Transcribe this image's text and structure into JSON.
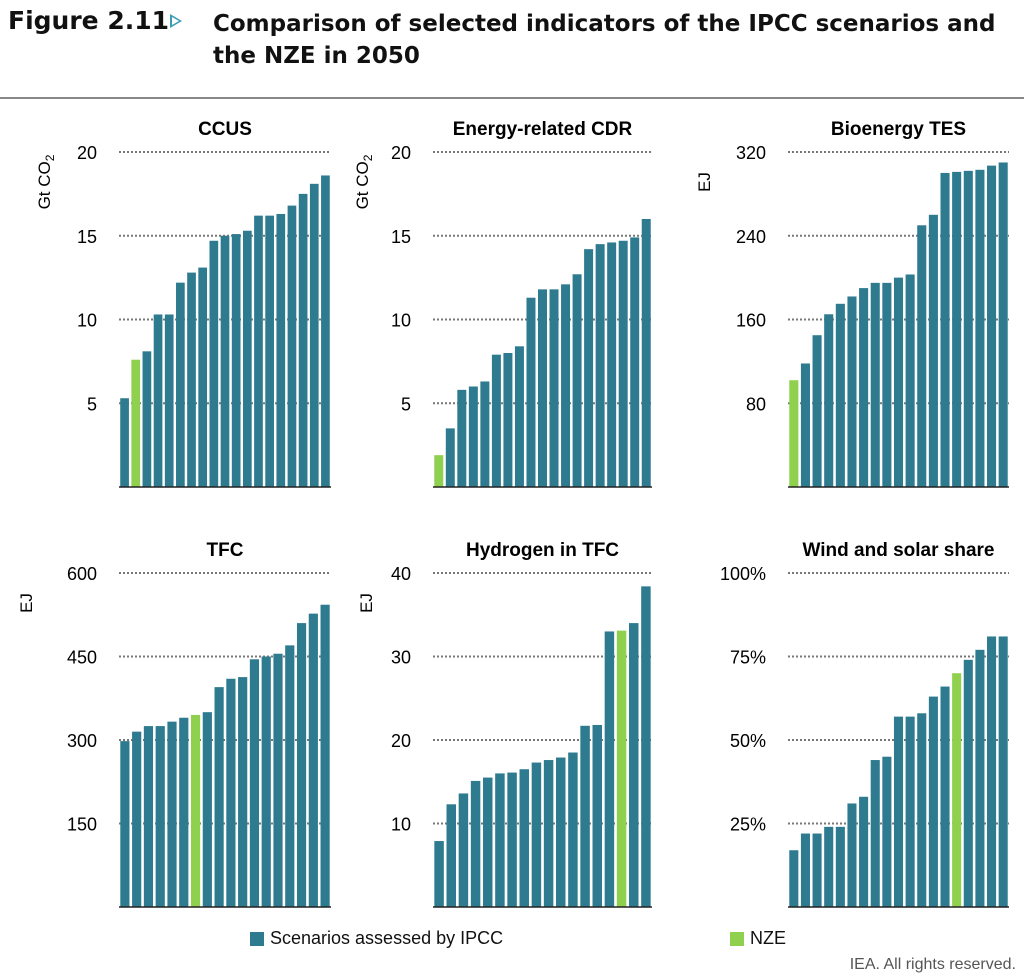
{
  "figure": {
    "label": "Figure 2.11",
    "title": "Comparison of selected indicators of the IPCC scenarios and the NZE in 2050"
  },
  "colors": {
    "ipcc": "#2e7b90",
    "nze": "#8fd14f",
    "grid": "#777777"
  },
  "legend": [
    {
      "label": "Scenarios assessed by IPCC",
      "color": "#2e7b90"
    },
    {
      "label": "NZE",
      "color": "#8fd14f"
    }
  ],
  "credit": "IEA. All rights reserved.",
  "chart_data": [
    {
      "type": "bar",
      "title": "CCUS",
      "ylabel": "Gt CO2",
      "ylim": [
        0,
        20
      ],
      "yticks": [
        5,
        10,
        15,
        20
      ],
      "tick_labels": [
        "5",
        "10",
        "15",
        "20"
      ],
      "series": [
        {
          "name": "Scenarios assessed by IPCC",
          "values": [
            5.3,
            7.6,
            8.1,
            10.3,
            10.3,
            12.2,
            12.8,
            13.1,
            14.7,
            15.0,
            15.1,
            15.3,
            16.2,
            16.2,
            16.3,
            16.8,
            17.5,
            18.1,
            18.6
          ]
        }
      ],
      "nze_index": 1
    },
    {
      "type": "bar",
      "title": "Energy-related CDR",
      "ylabel": "Gt CO2",
      "ylim": [
        0,
        20
      ],
      "yticks": [
        5,
        10,
        15,
        20
      ],
      "tick_labels": [
        "5",
        "10",
        "15",
        "20"
      ],
      "series": [
        {
          "name": "Scenarios assessed by IPCC",
          "values": [
            1.9,
            3.5,
            5.8,
            6.0,
            6.3,
            7.9,
            8.0,
            8.4,
            11.3,
            11.8,
            11.8,
            12.1,
            12.7,
            14.2,
            14.5,
            14.6,
            14.7,
            14.9,
            16.0
          ]
        }
      ],
      "nze_index": 0
    },
    {
      "type": "bar",
      "title": "Bioenergy TES",
      "ylabel": "EJ",
      "ylim": [
        0,
        320
      ],
      "yticks": [
        80,
        160,
        240,
        320
      ],
      "tick_labels": [
        "80",
        "160",
        "240",
        "320"
      ],
      "series": [
        {
          "name": "Scenarios assessed by IPCC",
          "values": [
            102,
            118,
            145,
            165,
            175,
            182,
            190,
            195,
            195,
            200,
            203,
            250,
            260,
            300,
            301,
            302,
            303,
            307,
            310
          ]
        }
      ],
      "nze_index": 0
    },
    {
      "type": "bar",
      "title": "TFC",
      "ylabel": "EJ",
      "ylim": [
        0,
        600
      ],
      "yticks": [
        150,
        300,
        450,
        600
      ],
      "tick_labels": [
        "150",
        "300",
        "450",
        "600"
      ],
      "series": [
        {
          "name": "Scenarios assessed by IPCC",
          "values": [
            298,
            315,
            325,
            325,
            333,
            340,
            345,
            350,
            395,
            410,
            413,
            445,
            450,
            455,
            470,
            510,
            527,
            543
          ]
        }
      ],
      "nze_index": 6
    },
    {
      "type": "bar",
      "title": "Hydrogen in TFC",
      "ylabel": "EJ",
      "ylim": [
        0,
        40
      ],
      "yticks": [
        10,
        20,
        30,
        40
      ],
      "tick_labels": [
        "10",
        "20",
        "30",
        "40"
      ],
      "series": [
        {
          "name": "Scenarios assessed by IPCC",
          "values": [
            7.9,
            12.3,
            13.6,
            15.1,
            15.5,
            16.0,
            16.1,
            16.5,
            17.3,
            17.6,
            17.9,
            18.5,
            21.7,
            21.8,
            33.0,
            33.1,
            34.0,
            38.4
          ]
        }
      ],
      "nze_index": 15
    },
    {
      "type": "bar",
      "title": "Wind and solar share",
      "ylabel": "",
      "ylim": [
        0,
        100
      ],
      "yticks": [
        25,
        50,
        75,
        100
      ],
      "tick_labels": [
        "25%",
        "50%",
        "75%",
        "100%"
      ],
      "series": [
        {
          "name": "Scenarios assessed by IPCC",
          "values": [
            17,
            22,
            22,
            24,
            24,
            31,
            33,
            44,
            45,
            57,
            57,
            58,
            63,
            66,
            70,
            74,
            77,
            81,
            81
          ]
        }
      ],
      "nze_index": 14
    }
  ]
}
